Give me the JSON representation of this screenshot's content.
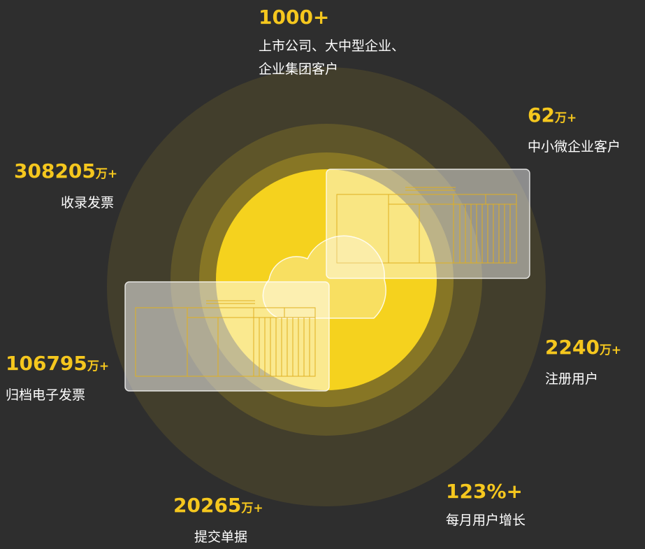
{
  "stats": [
    {
      "value": "1000+",
      "lines": [
        "上市公司、大中型企业、",
        "企业集团客户"
      ]
    },
    {
      "value": "62",
      "unit": "万+",
      "lines": [
        "中小微企业客户"
      ]
    },
    {
      "value": "308205",
      "unit": "万+",
      "lines": [
        "收录发票"
      ]
    },
    {
      "value": "2240",
      "unit": "万+",
      "lines": [
        "注册用户"
      ]
    },
    {
      "value": "106795",
      "unit": "万+",
      "lines": [
        "归档电子发票"
      ]
    },
    {
      "value": "20265",
      "unit": "万+",
      "lines": [
        "提交单据"
      ]
    },
    {
      "value": "123%+",
      "lines": [
        "每月用户增长"
      ]
    }
  ]
}
